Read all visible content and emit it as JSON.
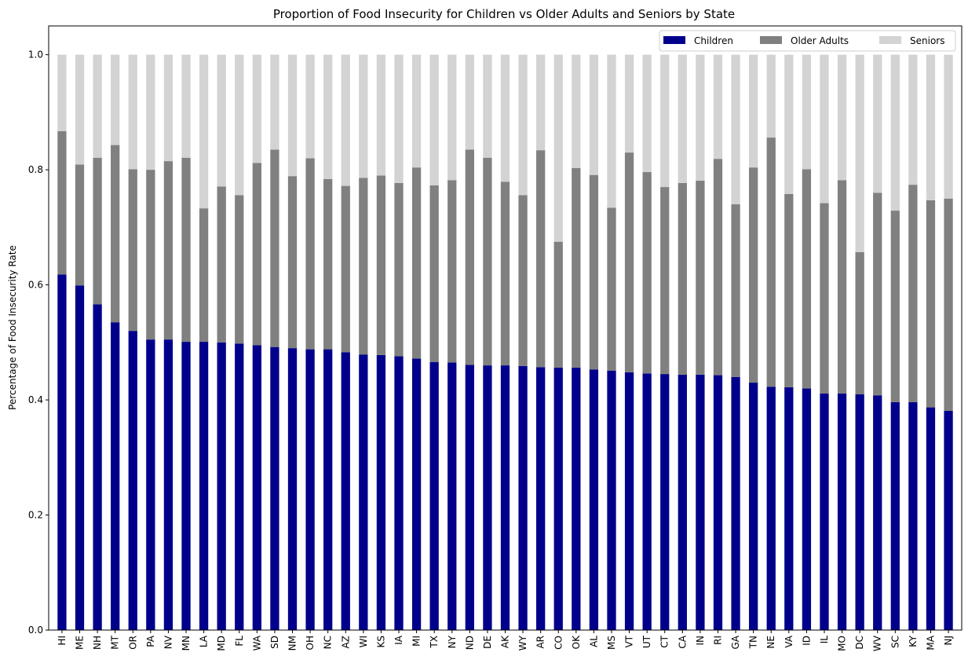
{
  "chart_data": {
    "type": "bar",
    "stacked": true,
    "title": "Proportion of Food Insecurity for Children vs Older Adults and Seniors by State",
    "xlabel": "",
    "ylabel": "Percentage of Food Insecurity Rate",
    "ylim": [
      0,
      1.05
    ],
    "yticks": [
      "0.0",
      "0.2",
      "0.4",
      "0.6",
      "0.8",
      "1.0"
    ],
    "grid": false,
    "legend_position": "top-right",
    "categories": [
      "HI",
      "ME",
      "NH",
      "MT",
      "OR",
      "PA",
      "NV",
      "MN",
      "LA",
      "MD",
      "FL",
      "WA",
      "SD",
      "NM",
      "OH",
      "NC",
      "AZ",
      "WI",
      "KS",
      "IA",
      "MI",
      "TX",
      "NY",
      "ND",
      "DE",
      "AK",
      "WY",
      "AR",
      "CO",
      "OK",
      "AL",
      "MS",
      "VT",
      "UT",
      "CT",
      "CA",
      "IN",
      "RI",
      "GA",
      "TN",
      "NE",
      "VA",
      "ID",
      "IL",
      "MO",
      "DC",
      "WV",
      "SC",
      "KY",
      "MA",
      "NJ"
    ],
    "series": [
      {
        "name": "Children",
        "color": "#00008b",
        "values": [
          0.618,
          0.599,
          0.566,
          0.535,
          0.52,
          0.505,
          0.505,
          0.501,
          0.501,
          0.5,
          0.498,
          0.495,
          0.492,
          0.49,
          0.488,
          0.488,
          0.483,
          0.479,
          0.478,
          0.476,
          0.472,
          0.466,
          0.465,
          0.461,
          0.46,
          0.46,
          0.459,
          0.457,
          0.456,
          0.456,
          0.453,
          0.451,
          0.448,
          0.446,
          0.445,
          0.444,
          0.444,
          0.443,
          0.44,
          0.43,
          0.423,
          0.422,
          0.42,
          0.411,
          0.411,
          0.41,
          0.408,
          0.396,
          0.396,
          0.387,
          0.381
        ]
      },
      {
        "name": "Older Adults",
        "color": "#808080",
        "values": [
          0.249,
          0.21,
          0.255,
          0.308,
          0.281,
          0.295,
          0.31,
          0.32,
          0.232,
          0.271,
          0.258,
          0.317,
          0.343,
          0.299,
          0.332,
          0.296,
          0.289,
          0.307,
          0.312,
          0.301,
          0.332,
          0.307,
          0.317,
          0.374,
          0.361,
          0.319,
          0.297,
          0.377,
          0.219,
          0.347,
          0.338,
          0.283,
          0.382,
          0.35,
          0.325,
          0.333,
          0.337,
          0.376,
          0.3,
          0.374,
          0.433,
          0.336,
          0.381,
          0.331,
          0.371,
          0.247,
          0.352,
          0.333,
          0.378,
          0.36,
          0.369
        ]
      },
      {
        "name": "Seniors",
        "color": "#d3d3d3",
        "values": [
          0.133,
          0.191,
          0.179,
          0.157,
          0.199,
          0.2,
          0.185,
          0.179,
          0.267,
          0.229,
          0.244,
          0.188,
          0.165,
          0.211,
          0.18,
          0.216,
          0.228,
          0.214,
          0.21,
          0.223,
          0.196,
          0.227,
          0.218,
          0.165,
          0.179,
          0.221,
          0.244,
          0.166,
          0.325,
          0.197,
          0.209,
          0.266,
          0.17,
          0.204,
          0.23,
          0.223,
          0.219,
          0.181,
          0.26,
          0.196,
          0.144,
          0.242,
          0.199,
          0.258,
          0.218,
          0.343,
          0.24,
          0.271,
          0.226,
          0.253,
          0.25
        ]
      }
    ]
  }
}
